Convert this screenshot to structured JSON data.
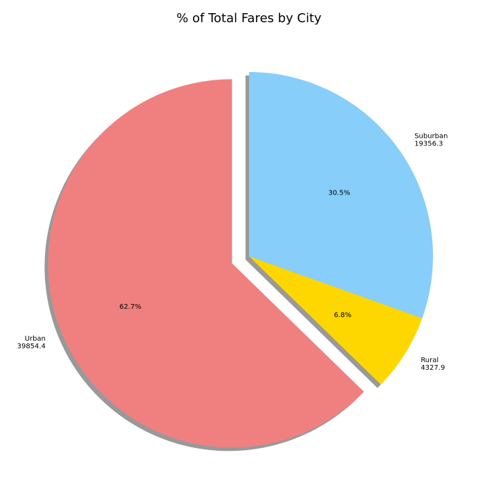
{
  "chart_data": {
    "type": "pie",
    "title": "% of Total Fares by City",
    "slices": [
      {
        "name": "Urban",
        "value": 39854.4,
        "value_label": "39854.4",
        "percent_label": "62.7%",
        "color": "#f08080",
        "exploded": true
      },
      {
        "name": "Rural",
        "value": 4327.9,
        "value_label": "4327.9",
        "percent_label": "6.8%",
        "color": "#ffd700",
        "exploded": false
      },
      {
        "name": "Suburban",
        "value": 19356.3,
        "value_label": "19356.3",
        "percent_label": "30.5%",
        "color": "#87cefa",
        "exploded": false
      }
    ],
    "shadow": true,
    "shadow_color": "#999999"
  }
}
